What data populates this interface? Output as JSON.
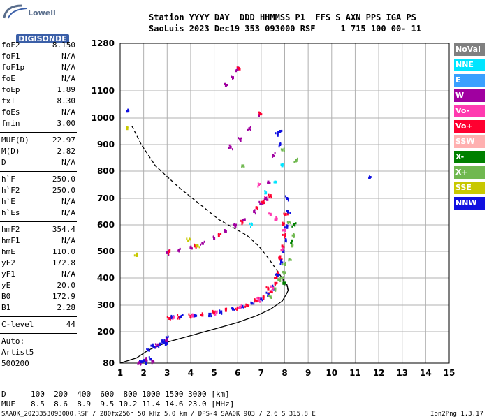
{
  "logo": {
    "line1": "Lowell",
    "line2": "DIGISONDE"
  },
  "header": {
    "line1": "Station YYYY DAY  DDD HHMMSS P1  FFS S AXN PPS IGA PS",
    "line2": "SaoLuis 2023 Dec19 353 093000 RSF     1 715 100 00- 11"
  },
  "params": {
    "group1": [
      {
        "key": "foF2",
        "val": "8.150"
      },
      {
        "key": "foF1",
        "val": "N/A"
      },
      {
        "key": "foF1p",
        "val": "N/A"
      },
      {
        "key": "foE",
        "val": "N/A"
      },
      {
        "key": "foEp",
        "val": "1.89"
      },
      {
        "key": "fxI",
        "val": "8.30"
      },
      {
        "key": "foEs",
        "val": "N/A"
      },
      {
        "key": "fmin",
        "val": "3.00"
      }
    ],
    "group2": [
      {
        "key": "MUF(D)",
        "val": "22.97"
      },
      {
        "key": "M(D)",
        "val": "2.82"
      },
      {
        "key": "D",
        "val": "N/A"
      }
    ],
    "group3": [
      {
        "key": "h`F",
        "val": "250.0"
      },
      {
        "key": "h`F2",
        "val": "250.0"
      },
      {
        "key": "h`E",
        "val": "N/A"
      },
      {
        "key": "h`Es",
        "val": "N/A"
      }
    ],
    "group4": [
      {
        "key": "hmF2",
        "val": "354.4"
      },
      {
        "key": "hmF1",
        "val": "N/A"
      },
      {
        "key": "hmE",
        "val": "110.0"
      },
      {
        "key": "yF2",
        "val": "172.8"
      },
      {
        "key": "yF1",
        "val": "N/A"
      },
      {
        "key": "yE",
        "val": "20.0"
      },
      {
        "key": "B0",
        "val": "172.9"
      },
      {
        "key": "B1",
        "val": "2.28"
      }
    ],
    "clevel": {
      "key": "C-level",
      "val": "44"
    },
    "auto": [
      "Auto:",
      "Artist5",
      "500200"
    ]
  },
  "legend": [
    {
      "label": "NoVal",
      "color": "#808080"
    },
    {
      "label": "NNE",
      "color": "#00e5ff"
    },
    {
      "label": "E",
      "color": "#3aa0ff"
    },
    {
      "label": "W",
      "color": "#a000a0"
    },
    {
      "label": "Vo-",
      "color": "#ff3ab0"
    },
    {
      "label": "Vo+",
      "color": "#ff0030"
    },
    {
      "label": "SSW",
      "color": "#ffb0b0"
    },
    {
      "label": "X-",
      "color": "#008000"
    },
    {
      "label": "X+",
      "color": "#70b850"
    },
    {
      "label": "SSE",
      "color": "#c8c800"
    },
    {
      "label": "NNW",
      "color": "#1010e0"
    }
  ],
  "bottom": {
    "row1_label": "D",
    "row1": "100  200  400  600  800 1000 1500 3000 [km]",
    "row2_label": "MUF",
    "row2": "8.5  8.6  8.9  9.5 10.2 11.4 14.6 23.0 [MHz]",
    "footer_left": "SAA0K_2023353093000.RSF / 280fx256h 50 kHz 5.0 km / DPS-4 SAA0K 903 / 2.6 S 315.8 E",
    "footer_right": "Ion2Png 1.3.17"
  },
  "chart_data": {
    "type": "scatter",
    "x_ticks": [
      "1",
      "2",
      "3",
      "4",
      "5",
      "6",
      "7",
      "8",
      "9",
      "10",
      "11",
      "12",
      "13",
      "14",
      "15"
    ],
    "y_ticks": [
      "80",
      "200",
      "300",
      "400",
      "500",
      "600",
      "700",
      "800",
      "900",
      "1000",
      "1100",
      "1280"
    ],
    "xlim": [
      1,
      15
    ],
    "ylim": [
      80,
      1280
    ],
    "grid": true,
    "curves": [
      {
        "style": "solid",
        "points": [
          [
            1,
            80
          ],
          [
            1.7,
            100
          ],
          [
            2.2,
            130
          ],
          [
            3,
            160
          ],
          [
            4,
            185
          ],
          [
            5,
            210
          ],
          [
            6,
            235
          ],
          [
            6.8,
            260
          ],
          [
            7.4,
            285
          ],
          [
            7.9,
            315
          ],
          [
            8.1,
            345
          ],
          [
            8.15,
            355
          ],
          [
            8.1,
            375
          ],
          [
            7.9,
            390
          ]
        ]
      },
      {
        "style": "dashed",
        "points": [
          [
            1.5,
            970
          ],
          [
            1.9,
            900
          ],
          [
            2.5,
            820
          ],
          [
            3.5,
            740
          ],
          [
            4.5,
            670
          ],
          [
            5.2,
            620
          ],
          [
            5.8,
            590
          ],
          [
            6.4,
            560
          ],
          [
            6.9,
            520
          ],
          [
            7.3,
            475
          ],
          [
            7.7,
            425
          ],
          [
            8.0,
            385
          ],
          [
            8.15,
            355
          ]
        ]
      }
    ],
    "traces": [
      {
        "color": "#1010e0",
        "points": [
          [
            1.9,
            85
          ],
          [
            2.0,
            90
          ],
          [
            2.1,
            80
          ],
          [
            2.3,
            95
          ],
          [
            2.5,
            140
          ],
          [
            2.7,
            150
          ],
          [
            2.9,
            160
          ],
          [
            3.0,
            155
          ],
          [
            2.2,
            130
          ],
          [
            2.4,
            145
          ],
          [
            2.8,
            165
          ],
          [
            3.0,
            175
          ]
        ]
      },
      {
        "color": "#a000a0",
        "points": [
          [
            1.8,
            82
          ],
          [
            2.1,
            92
          ],
          [
            2.4,
            88
          ],
          [
            2.6,
            150
          ],
          [
            3.0,
            170
          ]
        ]
      },
      {
        "color": "#ff0030",
        "points": [
          [
            3.1,
            250
          ],
          [
            3.5,
            255
          ],
          [
            4.0,
            258
          ],
          [
            4.5,
            262
          ],
          [
            5.0,
            270
          ],
          [
            5.5,
            280
          ],
          [
            6.0,
            290
          ],
          [
            6.4,
            300
          ],
          [
            6.8,
            315
          ],
          [
            7.1,
            330
          ],
          [
            7.4,
            350
          ],
          [
            7.6,
            380
          ],
          [
            7.7,
            420
          ],
          [
            7.8,
            470
          ],
          [
            7.9,
            520
          ],
          [
            8.0,
            560
          ],
          [
            7.95,
            600
          ],
          [
            8.05,
            640
          ],
          [
            7.8,
            480
          ],
          [
            7.6,
            400
          ],
          [
            7.3,
            360
          ],
          [
            6.9,
            320
          ]
        ]
      },
      {
        "color": "#1010e0",
        "points": [
          [
            3.2,
            252
          ],
          [
            3.6,
            256
          ],
          [
            4.2,
            260
          ],
          [
            4.8,
            266
          ],
          [
            5.3,
            275
          ],
          [
            5.8,
            285
          ],
          [
            6.2,
            295
          ],
          [
            6.6,
            307
          ],
          [
            7.0,
            322
          ],
          [
            7.3,
            340
          ],
          [
            7.5,
            365
          ],
          [
            7.7,
            410
          ],
          [
            7.85,
            460
          ],
          [
            7.95,
            500
          ],
          [
            8.05,
            540
          ],
          [
            8.1,
            590
          ],
          [
            8.15,
            650
          ],
          [
            8.1,
            700
          ],
          [
            7.7,
            940
          ],
          [
            7.8,
            900
          ]
        ]
      },
      {
        "color": "#70b850",
        "points": [
          [
            7.4,
            330
          ],
          [
            7.6,
            360
          ],
          [
            7.8,
            390
          ],
          [
            8.0,
            420
          ],
          [
            8.2,
            470
          ],
          [
            8.3,
            520
          ],
          [
            8.4,
            560
          ],
          [
            8.2,
            610
          ],
          [
            8.0,
            450
          ],
          [
            7.9,
            400
          ],
          [
            8.5,
            840
          ],
          [
            7.9,
            880
          ],
          [
            6.2,
            820
          ]
        ]
      },
      {
        "color": "#ff3ab0",
        "points": [
          [
            3.3,
            254
          ],
          [
            4.1,
            259
          ],
          [
            5.1,
            272
          ],
          [
            6.1,
            292
          ],
          [
            6.9,
            318
          ],
          [
            7.5,
            362
          ],
          [
            7.9,
            505
          ],
          [
            8.0,
            580
          ],
          [
            7.6,
            620
          ],
          [
            7.4,
            640
          ],
          [
            7.2,
            700
          ],
          [
            6.9,
            750
          ]
        ]
      },
      {
        "color": "#a000a0",
        "points": [
          [
            3.0,
            495
          ],
          [
            3.5,
            505
          ],
          [
            4.0,
            515
          ],
          [
            4.5,
            530
          ],
          [
            5.0,
            550
          ],
          [
            5.5,
            575
          ],
          [
            5.9,
            595
          ],
          [
            6.3,
            620
          ],
          [
            6.7,
            650
          ],
          [
            7.0,
            680
          ],
          [
            7.2,
            700
          ],
          [
            7.3,
            760
          ],
          [
            7.5,
            860
          ],
          [
            5.7,
            890
          ],
          [
            6.1,
            920
          ],
          [
            6.5,
            960
          ],
          [
            6.9,
            1010
          ],
          [
            6.0,
            1180
          ],
          [
            5.8,
            1150
          ],
          [
            5.5,
            1120
          ]
        ]
      },
      {
        "color": "#ff0030",
        "points": [
          [
            3.1,
            498
          ],
          [
            4.2,
            520
          ],
          [
            5.2,
            560
          ],
          [
            6.2,
            610
          ],
          [
            6.8,
            665
          ],
          [
            7.1,
            690
          ],
          [
            7.4,
            710
          ],
          [
            6.95,
            1015
          ],
          [
            6.05,
            1185
          ]
        ]
      },
      {
        "color": "#1010e0",
        "points": [
          [
            1.3,
            1025
          ],
          [
            11.6,
            775
          ],
          [
            7.8,
            950
          ]
        ]
      },
      {
        "color": "#c8c800",
        "points": [
          [
            1.3,
            960
          ],
          [
            1.7,
            490
          ],
          [
            3.9,
            540
          ],
          [
            4.3,
            520
          ]
        ]
      },
      {
        "color": "#00e5ff",
        "points": [
          [
            7.2,
            720
          ],
          [
            7.6,
            760
          ],
          [
            7.9,
            820
          ],
          [
            6.6,
            600
          ]
        ]
      },
      {
        "color": "#008000",
        "points": [
          [
            8.3,
            540
          ],
          [
            8.4,
            600
          ],
          [
            7.95,
            380
          ]
        ]
      }
    ]
  }
}
